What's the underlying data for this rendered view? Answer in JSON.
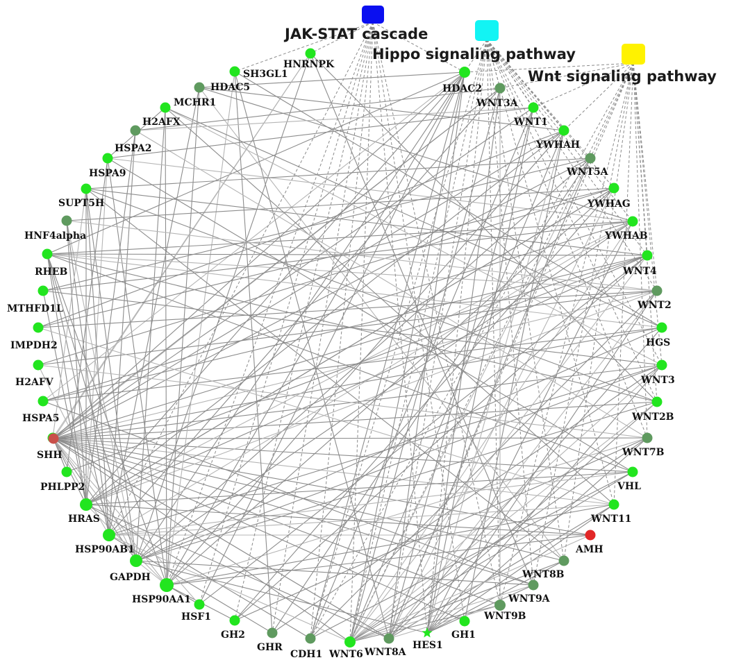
{
  "colors": {
    "bright": "#22e51f",
    "dark": "#5f9a5f",
    "red_dark": "#c9504a",
    "red": "#e22727",
    "edge": "#8c8c8c"
  },
  "pathways": [
    {
      "id": "jak",
      "label": "JAK-STAT cascade",
      "color": "#0a0ff0"
    },
    {
      "id": "hippo",
      "label": "Hippo signaling pathway",
      "color": "#12f4f4"
    },
    {
      "id": "wnt",
      "label": "Wnt signaling pathway",
      "color": "#fff200"
    }
  ],
  "nodes": [
    {
      "id": "HNRNPK",
      "label": "HNRNPK",
      "color": "bright"
    },
    {
      "id": "SH3GL1",
      "label": "SH3GL1",
      "color": "bright"
    },
    {
      "id": "HDAC5",
      "label": "HDAC5",
      "color": "dark"
    },
    {
      "id": "MCHR1",
      "label": "MCHR1",
      "color": "bright"
    },
    {
      "id": "H2AFX",
      "label": "H2AFX",
      "color": "dark"
    },
    {
      "id": "HSPA2",
      "label": "HSPA2",
      "color": "bright"
    },
    {
      "id": "HSPA9",
      "label": "HSPA9",
      "color": "bright"
    },
    {
      "id": "SUPT5H",
      "label": "SUPT5H",
      "color": "dark"
    },
    {
      "id": "HNF4alpha",
      "label": "HNF4alpha",
      "color": "bright"
    },
    {
      "id": "RHEB",
      "label": "RHEB",
      "color": "bright"
    },
    {
      "id": "MTHFD1L",
      "label": "MTHFD1L",
      "color": "bright"
    },
    {
      "id": "IMPDH2",
      "label": "IMPDH2",
      "color": "bright"
    },
    {
      "id": "H2AFV",
      "label": "H2AFV",
      "color": "bright"
    },
    {
      "id": "HSPA5",
      "label": "HSPA5",
      "color": "bright"
    },
    {
      "id": "SHH",
      "label": "SHH",
      "color": "red_dark"
    },
    {
      "id": "PHLPP2",
      "label": "PHLPP2",
      "color": "bright"
    },
    {
      "id": "HRAS",
      "label": "HRAS",
      "color": "bright"
    },
    {
      "id": "HSP90AB1",
      "label": "HSP90AB1",
      "color": "bright"
    },
    {
      "id": "GAPDH",
      "label": "GAPDH",
      "color": "bright"
    },
    {
      "id": "HSP90AA1",
      "label": "HSP90AA1",
      "color": "bright"
    },
    {
      "id": "HSF1",
      "label": "HSF1",
      "color": "bright"
    },
    {
      "id": "GH2",
      "label": "GH2",
      "color": "bright"
    },
    {
      "id": "GHR",
      "label": "GHR",
      "color": "dark"
    },
    {
      "id": "CDH1",
      "label": "CDH1",
      "color": "dark"
    },
    {
      "id": "WNT6",
      "label": "WNT6",
      "color": "bright"
    },
    {
      "id": "WNT8A",
      "label": "WNT8A",
      "color": "dark"
    },
    {
      "id": "HES1",
      "label": "HES1",
      "color": "bright"
    },
    {
      "id": "GH1",
      "label": "GH1",
      "color": "bright"
    },
    {
      "id": "WNT9B",
      "label": "WNT9B",
      "color": "dark"
    },
    {
      "id": "WNT9A",
      "label": "WNT9A",
      "color": "dark"
    },
    {
      "id": "WNT8B",
      "label": "WNT8B",
      "color": "dark"
    },
    {
      "id": "AMH",
      "label": "AMH",
      "color": "red"
    },
    {
      "id": "WNT11",
      "label": "WNT11",
      "color": "bright"
    },
    {
      "id": "VHL",
      "label": "VHL",
      "color": "bright"
    },
    {
      "id": "WNT7B",
      "label": "WNT7B",
      "color": "dark"
    },
    {
      "id": "WNT2B",
      "label": "WNT2B",
      "color": "bright"
    },
    {
      "id": "WNT3",
      "label": "WNT3",
      "color": "bright"
    },
    {
      "id": "HGS",
      "label": "HGS",
      "color": "bright"
    },
    {
      "id": "WNT2",
      "label": "WNT2",
      "color": "dark"
    },
    {
      "id": "WNT4",
      "label": "WNT4",
      "color": "bright"
    },
    {
      "id": "YWHAB",
      "label": "YWHAB",
      "color": "bright"
    },
    {
      "id": "YWHAG",
      "label": "YWHAG",
      "color": "bright"
    },
    {
      "id": "WNT5A",
      "label": "WNT5A",
      "color": "dark"
    },
    {
      "id": "YWHAH",
      "label": "YWHAH",
      "color": "bright"
    },
    {
      "id": "WNT1",
      "label": "WNT1",
      "color": "bright"
    },
    {
      "id": "WNT3A",
      "label": "WNT3A",
      "color": "dark"
    },
    {
      "id": "HDAC2",
      "label": "HDAC2",
      "color": "bright"
    }
  ],
  "pathway_edges": [
    [
      "jak",
      "SH3GL1"
    ],
    [
      "jak",
      "HDAC2"
    ],
    [
      "jak",
      "HSP90AA1"
    ],
    [
      "jak",
      "HSF1"
    ],
    [
      "jak",
      "GH2"
    ],
    [
      "jak",
      "GHR"
    ],
    [
      "jak",
      "CDH1"
    ],
    [
      "jak",
      "GH1"
    ],
    [
      "jak",
      "HES1"
    ],
    [
      "jak",
      "HSP90AB1"
    ],
    [
      "jak",
      "HNRNPK"
    ],
    [
      "jak",
      "WNT9B"
    ],
    [
      "jak",
      "WNT6"
    ],
    [
      "hippo",
      "HDAC2"
    ],
    [
      "hippo",
      "WNT3A"
    ],
    [
      "hippo",
      "WNT1"
    ],
    [
      "hippo",
      "YWHAH"
    ],
    [
      "hippo",
      "WNT5A"
    ],
    [
      "hippo",
      "YWHAG"
    ],
    [
      "hippo",
      "YWHAB"
    ],
    [
      "hippo",
      "WNT4"
    ],
    [
      "hippo",
      "WNT2"
    ],
    [
      "hippo",
      "WNT3"
    ],
    [
      "hippo",
      "WNT2B"
    ],
    [
      "hippo",
      "WNT7B"
    ],
    [
      "hippo",
      "WNT11"
    ],
    [
      "hippo",
      "WNT8B"
    ],
    [
      "hippo",
      "WNT9A"
    ],
    [
      "hippo",
      "WNT9B"
    ],
    [
      "hippo",
      "WNT8A"
    ],
    [
      "hippo",
      "WNT6"
    ],
    [
      "hippo",
      "CDH1"
    ],
    [
      "hippo",
      "HES1"
    ],
    [
      "wnt",
      "WNT3A"
    ],
    [
      "wnt",
      "WNT1"
    ],
    [
      "wnt",
      "WNT5A"
    ],
    [
      "wnt",
      "WNT4"
    ],
    [
      "wnt",
      "WNT2"
    ],
    [
      "wnt",
      "WNT3"
    ],
    [
      "wnt",
      "WNT2B"
    ],
    [
      "wnt",
      "WNT7B"
    ],
    [
      "wnt",
      "WNT11"
    ],
    [
      "wnt",
      "WNT8B"
    ],
    [
      "wnt",
      "WNT9A"
    ],
    [
      "wnt",
      "WNT9B"
    ],
    [
      "wnt",
      "WNT8A"
    ],
    [
      "wnt",
      "WNT6"
    ],
    [
      "wnt",
      "HDAC2"
    ],
    [
      "wnt",
      "CDH1"
    ],
    [
      "wnt",
      "YWHAH"
    ]
  ],
  "ppi_edges": [
    [
      "SHH",
      "WNT3A"
    ],
    [
      "SHH",
      "WNT1"
    ],
    [
      "SHH",
      "WNT5A"
    ],
    [
      "SHH",
      "WNT4"
    ],
    [
      "SHH",
      "WNT2"
    ],
    [
      "SHH",
      "WNT3"
    ],
    [
      "SHH",
      "WNT2B"
    ],
    [
      "SHH",
      "WNT7B"
    ],
    [
      "SHH",
      "WNT11"
    ],
    [
      "SHH",
      "WNT8B"
    ],
    [
      "SHH",
      "WNT9A"
    ],
    [
      "SHH",
      "WNT9B"
    ],
    [
      "SHH",
      "WNT8A"
    ],
    [
      "SHH",
      "WNT6"
    ],
    [
      "SHH",
      "HDAC2"
    ],
    [
      "SHH",
      "HRAS"
    ],
    [
      "SHH",
      "HSP90AB1"
    ],
    [
      "SHH",
      "GAPDH"
    ],
    [
      "SHH",
      "HSPA5"
    ],
    [
      "SHH",
      "AMH"
    ],
    [
      "SHH",
      "HNRNPK"
    ],
    [
      "SHH",
      "PHLPP2"
    ],
    [
      "SHH",
      "VHL"
    ],
    [
      "SHH",
      "HGS"
    ],
    [
      "HRAS",
      "YWHAB"
    ],
    [
      "HRAS",
      "YWHAG"
    ],
    [
      "HRAS",
      "YWHAH"
    ],
    [
      "HRAS",
      "HSPA9"
    ],
    [
      "HRAS",
      "HSPA2"
    ],
    [
      "HRAS",
      "RHEB"
    ],
    [
      "HRAS",
      "WNT4"
    ],
    [
      "HRAS",
      "HDAC2"
    ],
    [
      "HRAS",
      "HSP90AA1"
    ],
    [
      "HRAS",
      "SUPT5H"
    ],
    [
      "HRAS",
      "H2AFX"
    ],
    [
      "HRAS",
      "VHL"
    ],
    [
      "HRAS",
      "WNT2"
    ],
    [
      "GAPDH",
      "HNRNPK"
    ],
    [
      "GAPDH",
      "MCHR1"
    ],
    [
      "GAPDH",
      "HSPA9"
    ],
    [
      "GAPDH",
      "SUPT5H"
    ],
    [
      "GAPDH",
      "HDAC2"
    ],
    [
      "GAPDH",
      "YWHAB"
    ],
    [
      "GAPDH",
      "WNT3"
    ],
    [
      "GAPDH",
      "HSP90AA1"
    ],
    [
      "GAPDH",
      "HGS"
    ],
    [
      "GAPDH",
      "WNT2B"
    ],
    [
      "GAPDH",
      "WNT5A"
    ],
    [
      "GAPDH",
      "IMPDH2"
    ],
    [
      "HSP90AA1",
      "HDAC5"
    ],
    [
      "HSP90AA1",
      "MCHR1"
    ],
    [
      "HSP90AA1",
      "HSPA2"
    ],
    [
      "HSP90AA1",
      "HSPA5"
    ],
    [
      "HSP90AA1",
      "HNF4alpha"
    ],
    [
      "HSP90AA1",
      "YWHAH"
    ],
    [
      "HSP90AA1",
      "YWHAG"
    ],
    [
      "HSP90AA1",
      "WNT7B"
    ],
    [
      "HSP90AA1",
      "HSF1"
    ],
    [
      "HSP90AA1",
      "WNT11"
    ],
    [
      "HSP90AA1",
      "HDAC2"
    ],
    [
      "HSP90AA1",
      "SH3GL1"
    ],
    [
      "HSP90AB1",
      "HDAC5"
    ],
    [
      "HSP90AB1",
      "H2AFX"
    ],
    [
      "HSP90AB1",
      "HSPA9"
    ],
    [
      "HSP90AB1",
      "YWHAB"
    ],
    [
      "HSP90AB1",
      "WNT3"
    ],
    [
      "HSP90AB1",
      "HNF4alpha"
    ],
    [
      "HSP90AB1",
      "SUPT5H"
    ],
    [
      "HSP90AB1",
      "AMH"
    ],
    [
      "HNF4alpha",
      "YWHAB"
    ],
    [
      "HNF4alpha",
      "WNT4"
    ],
    [
      "HNF4alpha",
      "HDAC2"
    ],
    [
      "HNF4alpha",
      "WNT2"
    ],
    [
      "HNF4alpha",
      "HRAS"
    ],
    [
      "HNF4alpha",
      "GAPDH"
    ],
    [
      "HNF4alpha",
      "VHL"
    ],
    [
      "HNF4alpha",
      "HGS"
    ],
    [
      "HDAC5",
      "HDAC2"
    ],
    [
      "HDAC5",
      "YWHAH"
    ],
    [
      "HDAC5",
      "YWHAB"
    ],
    [
      "HDAC5",
      "WNT8B"
    ],
    [
      "HDAC2",
      "WNT6"
    ],
    [
      "HDAC2",
      "CDH1"
    ],
    [
      "HDAC2",
      "HSF1"
    ],
    [
      "HDAC2",
      "H2AFV"
    ],
    [
      "HDAC2",
      "WNT8A"
    ],
    [
      "HNRNPK",
      "WNT9A"
    ],
    [
      "HNRNPK",
      "WNT2B"
    ],
    [
      "HNRNPK",
      "HSPA5"
    ],
    [
      "SH3GL1",
      "HGS"
    ],
    [
      "SH3GL1",
      "WNT8A"
    ],
    [
      "SH3GL1",
      "GHR"
    ],
    [
      "MCHR1",
      "WNT3"
    ],
    [
      "MCHR1",
      "WNT11"
    ],
    [
      "MCHR1",
      "HSPA2"
    ],
    [
      "YWHAH",
      "WNT6"
    ],
    [
      "YWHAH",
      "HES1"
    ],
    [
      "YWHAH",
      "GH1"
    ],
    [
      "YWHAH",
      "HSPA5"
    ],
    [
      "YWHAH",
      "MTHFD1L"
    ],
    [
      "YWHAG",
      "WNT8A"
    ],
    [
      "YWHAG",
      "IMPDH2"
    ],
    [
      "YWHAG",
      "GH2"
    ],
    [
      "YWHAG",
      "HRAS"
    ],
    [
      "YWHAB",
      "WNT6"
    ],
    [
      "YWHAB",
      "HES1"
    ],
    [
      "YWHAB",
      "RHEB"
    ],
    [
      "YWHAB",
      "H2AFV"
    ],
    [
      "YWHAB",
      "HSPA2"
    ],
    [
      "WNT5A",
      "WNT8A"
    ],
    [
      "WNT5A",
      "GHR"
    ],
    [
      "WNT5A",
      "HSPA9"
    ],
    [
      "WNT5A",
      "WNT6"
    ],
    [
      "WNT3A",
      "WNT6"
    ],
    [
      "WNT3A",
      "HES1"
    ],
    [
      "WNT3A",
      "HSP90AB1"
    ],
    [
      "WNT3A",
      "WNT9B"
    ],
    [
      "WNT1",
      "WNT8A"
    ],
    [
      "WNT1",
      "CDH1"
    ],
    [
      "WNT1",
      "HES1"
    ],
    [
      "WNT4",
      "WNT6"
    ],
    [
      "WNT4",
      "HSF1"
    ],
    [
      "WNT4",
      "GH2"
    ],
    [
      "WNT4",
      "HSPA9"
    ],
    [
      "WNT2",
      "WNT8A"
    ],
    [
      "WNT2",
      "CDH1"
    ],
    [
      "WNT2",
      "HES1"
    ],
    [
      "WNT2",
      "MTHFD1L"
    ],
    [
      "WNT3",
      "WNT6"
    ],
    [
      "WNT3",
      "GHR"
    ],
    [
      "WNT3",
      "HES1"
    ],
    [
      "WNT2B",
      "WNT8A"
    ],
    [
      "WNT2B",
      "WNT6"
    ],
    [
      "WNT2B",
      "HNF4alpha"
    ],
    [
      "WNT7B",
      "WNT6"
    ],
    [
      "WNT7B",
      "HES1"
    ],
    [
      "WNT7B",
      "H2AFX"
    ],
    [
      "WNT7B",
      "GH2"
    ],
    [
      "WNT11",
      "WNT8A"
    ],
    [
      "WNT11",
      "HES1"
    ],
    [
      "WNT11",
      "HSP90AB1"
    ],
    [
      "WNT8B",
      "WNT6"
    ],
    [
      "WNT8B",
      "HES1"
    ],
    [
      "WNT8B",
      "HSPA9"
    ],
    [
      "WNT9A",
      "WNT6"
    ],
    [
      "WNT9A",
      "HES1"
    ],
    [
      "WNT9A",
      "GAPDH"
    ],
    [
      "WNT9B",
      "WNT6"
    ],
    [
      "WNT9B",
      "WNT8A"
    ],
    [
      "VHL",
      "WNT6"
    ],
    [
      "VHL",
      "HSPA2"
    ],
    [
      "VHL",
      "CDH1"
    ],
    [
      "VHL",
      "HSP90AB1"
    ],
    [
      "HGS",
      "WNT8A"
    ],
    [
      "HGS",
      "MCHR1"
    ],
    [
      "HGS",
      "H2AFV"
    ],
    [
      "AMH",
      "WNT6"
    ],
    [
      "AMH",
      "HRAS"
    ],
    [
      "AMH",
      "HSP90AA1"
    ],
    [
      "HSPA5",
      "WNT3A"
    ],
    [
      "HSPA5",
      "HSPA9"
    ],
    [
      "HSPA5",
      "WNT8A"
    ],
    [
      "RHEB",
      "WNT5A"
    ],
    [
      "RHEB",
      "WNT3"
    ],
    [
      "IMPDH2",
      "WNT7B"
    ],
    [
      "IMPDH2",
      "WNT2"
    ],
    [
      "H2AFV",
      "WNT4"
    ],
    [
      "H2AFV",
      "WNT9A"
    ],
    [
      "MTHFD1L",
      "WNT11"
    ],
    [
      "MTHFD1L",
      "YWHAG"
    ],
    [
      "PHLPP2",
      "WNT4"
    ],
    [
      "PHLPP2",
      "HSPA2"
    ],
    [
      "H2AFX",
      "WNT1"
    ],
    [
      "H2AFX",
      "WNT3A"
    ],
    [
      "HSPA9",
      "WNT2B"
    ],
    [
      "HSPA2",
      "WNT1"
    ],
    [
      "SUPT5H",
      "WNT2"
    ],
    [
      "SUPT5H",
      "YWHAG"
    ],
    [
      "GH1",
      "HSPA5"
    ],
    [
      "GH2",
      "HSP90AA1"
    ],
    [
      "HSF1",
      "HSPA5"
    ],
    [
      "GHR",
      "HSP90AB1"
    ],
    [
      "CDH1",
      "HRAS"
    ],
    [
      "HES1",
      "GAPDH"
    ],
    [
      "WNT6",
      "HSP90AB1"
    ],
    [
      "WNT8A",
      "HRAS"
    ]
  ]
}
